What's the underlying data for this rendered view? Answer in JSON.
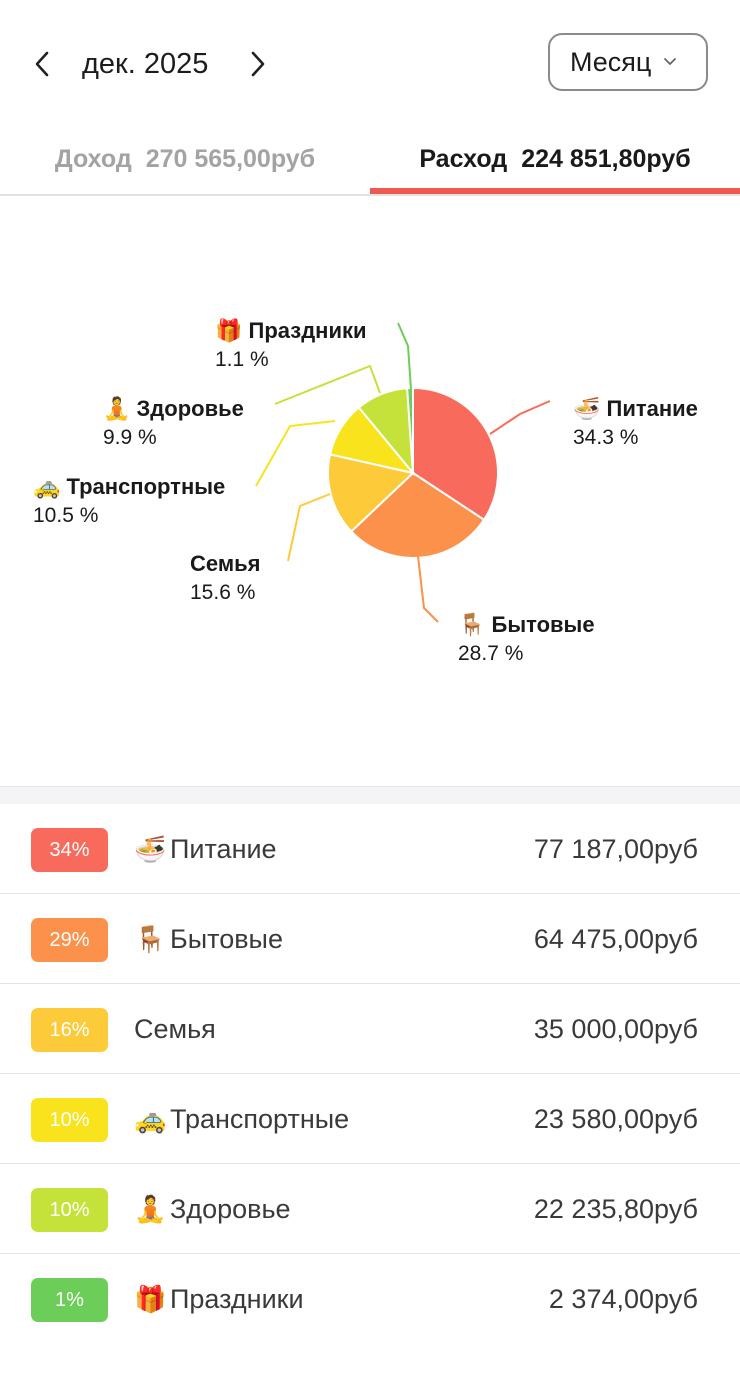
{
  "header": {
    "month_label": "дек. 2025",
    "period_label": "Месяц"
  },
  "tabs": {
    "income": {
      "label": "Доход",
      "value": "270 565,00руб"
    },
    "expense": {
      "label": "Расход",
      "value": "224 851,80руб"
    }
  },
  "chart_data": {
    "type": "pie",
    "slices": [
      {
        "label": "Питание",
        "emoji": "🍜",
        "value": 34.3,
        "pct_text": "34.3 %",
        "color": "#f86b5c"
      },
      {
        "label": "Бытовые",
        "emoji": "🪑",
        "value": 28.7,
        "pct_text": "28.7 %",
        "color": "#fb914a"
      },
      {
        "label": "Семья",
        "emoji": "",
        "value": 15.6,
        "pct_text": "15.6 %",
        "color": "#fdcb3a"
      },
      {
        "label": "Транспортные",
        "emoji": "🚕",
        "value": 10.5,
        "pct_text": "10.5 %",
        "color": "#f8e31c"
      },
      {
        "label": "Здоровье",
        "emoji": "🧘",
        "value": 9.9,
        "pct_text": "9.9 %",
        "color": "#c4e23a"
      },
      {
        "label": "Праздники",
        "emoji": "🎁",
        "value": 1.1,
        "pct_text": "1.1 %",
        "color": "#6cce58"
      }
    ]
  },
  "list": [
    {
      "badge": "34%",
      "color": "#f86b5c",
      "emoji": "🍜",
      "name": "Питание",
      "amount": "77 187,00руб"
    },
    {
      "badge": "29%",
      "color": "#fb914a",
      "emoji": "🪑",
      "name": "Бытовые",
      "amount": "64 475,00руб"
    },
    {
      "badge": "16%",
      "color": "#fdcb3a",
      "emoji": "",
      "name": "Семья",
      "amount": "35 000,00руб"
    },
    {
      "badge": "10%",
      "color": "#f8e31c",
      "emoji": "🚕",
      "name": "Транспортные",
      "amount": "23 580,00руб"
    },
    {
      "badge": "10%",
      "color": "#c4e23a",
      "emoji": "🧘",
      "name": "Здоровье",
      "amount": "22 235,80руб"
    },
    {
      "badge": "1%",
      "color": "#6cce58",
      "emoji": "🎁",
      "name": "Праздники",
      "amount": "2 374,00руб"
    }
  ]
}
